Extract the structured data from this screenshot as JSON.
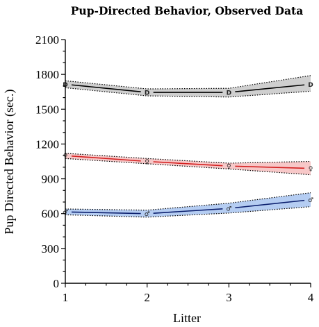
{
  "chart_data": {
    "type": "line",
    "title": "Pup-Directed Behavior, Observed Data",
    "xlabel": "Litter",
    "ylabel": "Pup Directed Behavior (sec.)",
    "x": [
      1,
      2,
      3,
      4
    ],
    "xlim": [
      1,
      4
    ],
    "ylim": [
      0,
      2100
    ],
    "xticks": [
      "1",
      "2",
      "3",
      "4"
    ],
    "yticks": [
      "0",
      "300",
      "600",
      "900",
      "1200",
      "1500",
      "1800",
      "2100"
    ],
    "series": [
      {
        "marker": "D",
        "color": "#000000",
        "band_fill": "#cfcfcf",
        "values": [
          1715,
          1645,
          1645,
          1715
        ],
        "lower": [
          1685,
          1615,
          1605,
          1655
        ],
        "upper": [
          1745,
          1675,
          1680,
          1790
        ]
      },
      {
        "marker": "♀",
        "color": "#d42020",
        "band_fill": "#f7c8c8",
        "values": [
          1100,
          1050,
          1010,
          990
        ],
        "lower": [
          1075,
          1030,
          985,
          935
        ],
        "upper": [
          1120,
          1075,
          1035,
          1050
        ]
      },
      {
        "marker": "♂",
        "color": "#0b1f6e",
        "band_fill": "#b5cdf2",
        "values": [
          615,
          600,
          645,
          720
        ],
        "lower": [
          590,
          570,
          605,
          660
        ],
        "upper": [
          640,
          630,
          690,
          780
        ]
      }
    ]
  }
}
